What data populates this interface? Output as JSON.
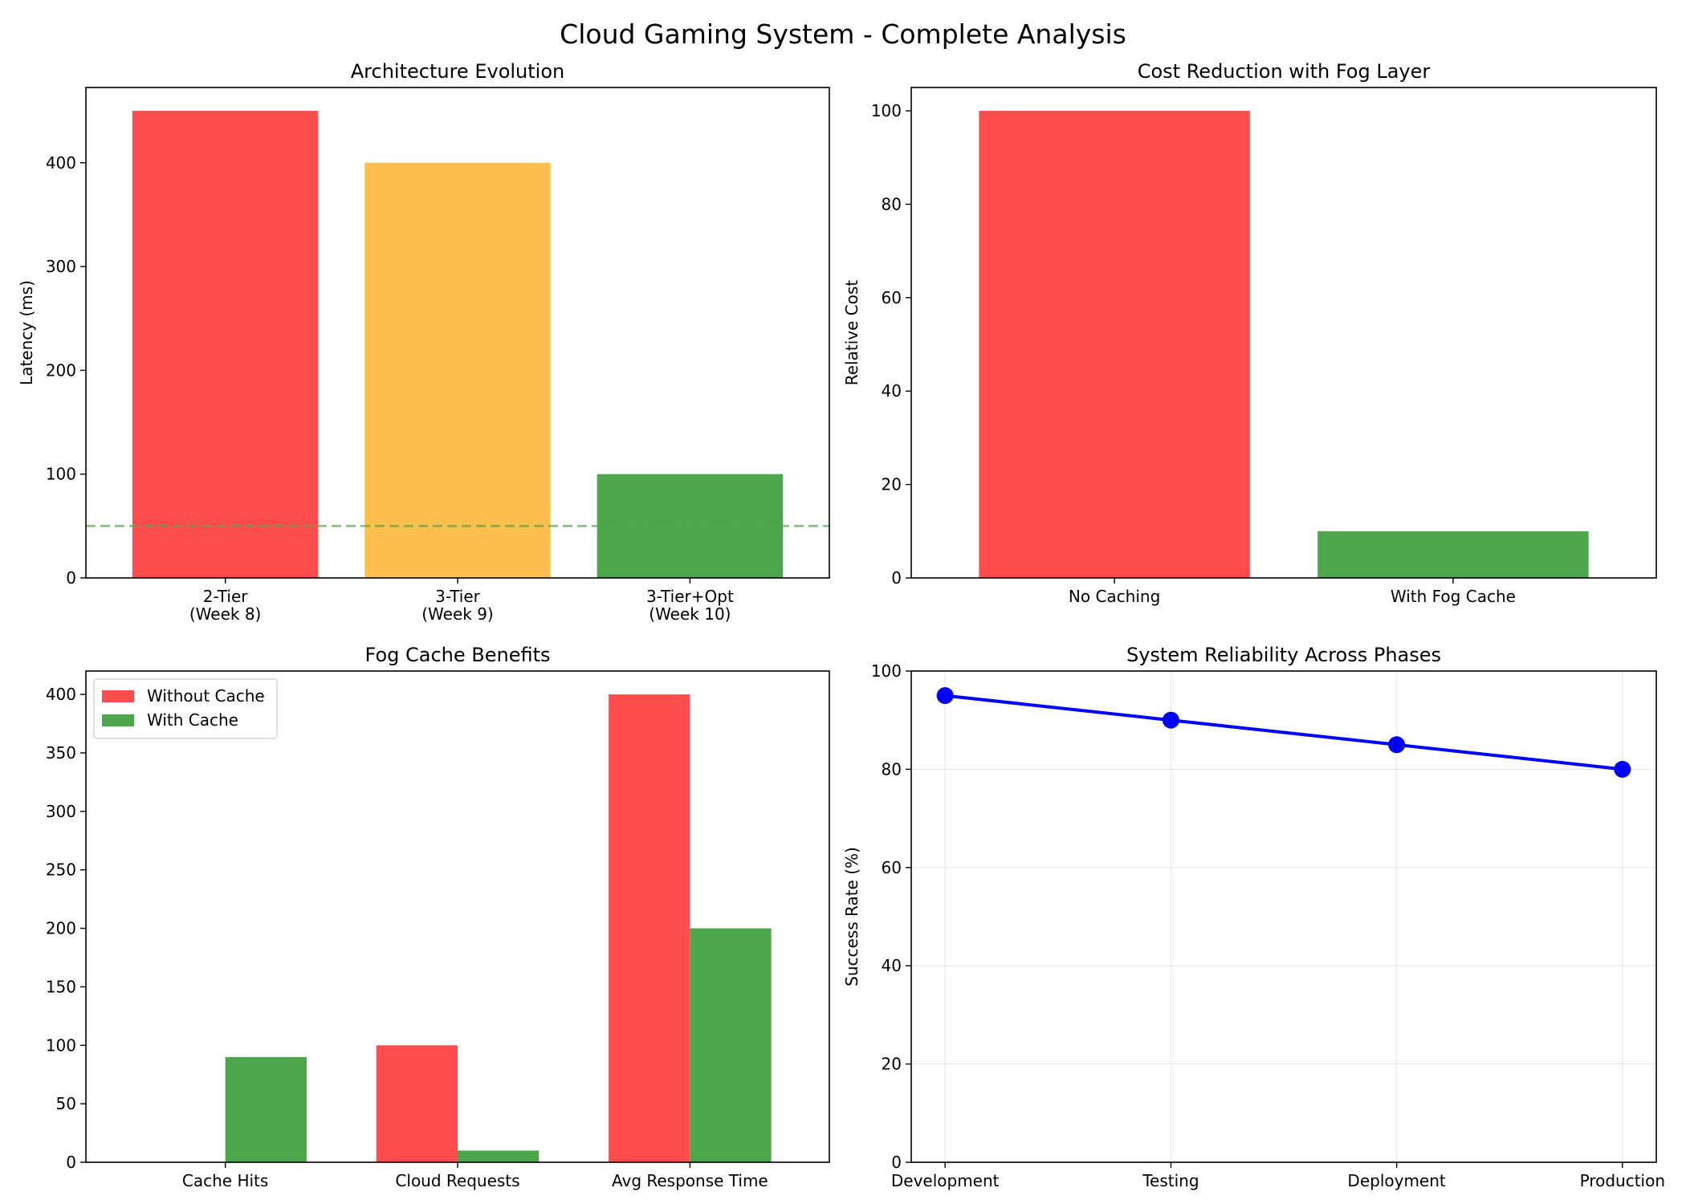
{
  "figure": {
    "title": "Cloud Gaming System - Complete Analysis"
  },
  "chart_data": [
    {
      "type": "bar",
      "title": "Architecture Evolution",
      "xlabel": "",
      "ylabel": "Latency (ms)",
      "categories": [
        "2-Tier\n(Week 8)",
        "3-Tier\n(Week 9)",
        "3-Tier+Opt\n(Week 10)"
      ],
      "values": [
        450,
        400,
        100
      ],
      "colors": [
        "#ff4c4c",
        "#ffbf4c",
        "#4ca64c"
      ],
      "ylim": [
        0,
        472.5
      ],
      "yticks": [
        0,
        100,
        200,
        300,
        400
      ],
      "reference_line": {
        "y": 50,
        "color": "#4ca64c",
        "style": "dashed"
      },
      "grid": false
    },
    {
      "type": "bar",
      "title": "Cost Reduction with Fog Layer",
      "xlabel": "",
      "ylabel": "Relative Cost",
      "categories": [
        "No Caching",
        "With Fog Cache"
      ],
      "values": [
        100,
        10
      ],
      "colors": [
        "#ff4c4c",
        "#4ca64c"
      ],
      "ylim": [
        0,
        105
      ],
      "yticks": [
        0,
        20,
        40,
        60,
        80,
        100
      ],
      "grid": false
    },
    {
      "type": "bar",
      "title": "Fog Cache Benefits",
      "xlabel": "",
      "ylabel": "",
      "categories": [
        "Cache Hits",
        "Cloud Requests",
        "Avg Response Time"
      ],
      "series": [
        {
          "name": "Without Cache",
          "values": [
            0,
            100,
            400
          ],
          "color": "#ff4c4c"
        },
        {
          "name": "With Cache",
          "values": [
            90,
            10,
            200
          ],
          "color": "#4ca64c"
        }
      ],
      "ylim": [
        0,
        420
      ],
      "yticks": [
        0,
        50,
        100,
        150,
        200,
        250,
        300,
        350,
        400
      ],
      "legend": "top-left",
      "grid": false
    },
    {
      "type": "line",
      "title": "System Reliability Across Phases",
      "xlabel": "",
      "ylabel": "Success Rate (%)",
      "categories": [
        "Development",
        "Testing",
        "Deployment",
        "Production"
      ],
      "values": [
        95,
        90,
        85,
        80
      ],
      "color": "#0000ff",
      "marker": "circle",
      "ylim": [
        0,
        100
      ],
      "yticks": [
        0,
        20,
        40,
        60,
        80,
        100
      ],
      "grid": true
    }
  ]
}
